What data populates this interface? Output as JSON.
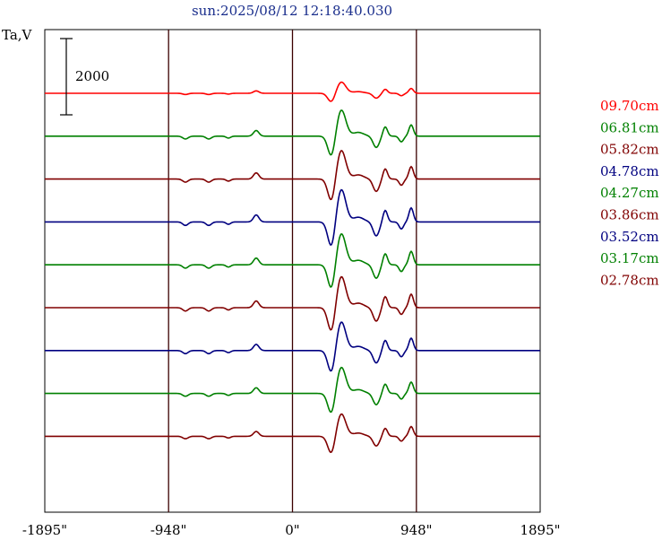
{
  "chart_data": {
    "type": "line",
    "title": "sun:2025/08/12 12:18:40.030",
    "ylabel": "Ta,V",
    "xlabel": "",
    "xlim": [
      -1895,
      1895
    ],
    "x_ticks": [
      {
        "value": -1895,
        "label": "-1895\""
      },
      {
        "value": -948,
        "label": "-948\""
      },
      {
        "value": 0,
        "label": "0\""
      },
      {
        "value": 948,
        "label": "948\""
      },
      {
        "value": 1895,
        "label": "1895\""
      }
    ],
    "vertical_lines": [
      -948,
      0,
      948
    ],
    "scale_bar": {
      "value": 2000,
      "label": "2000"
    },
    "series": [
      {
        "name": "09.70cm",
        "color": "#ff0000",
        "amp": 0.45
      },
      {
        "name": "06.81cm",
        "color": "#008000",
        "amp": 1.05
      },
      {
        "name": "05.82cm",
        "color": "#800000",
        "amp": 1.15
      },
      {
        "name": "04.78cm",
        "color": "#000080",
        "amp": 1.3
      },
      {
        "name": "04.27cm",
        "color": "#008000",
        "amp": 1.25
      },
      {
        "name": "03.86cm",
        "color": "#800000",
        "amp": 1.25
      },
      {
        "name": "03.52cm",
        "color": "#000080",
        "amp": 1.15
      },
      {
        "name": "03.17cm",
        "color": "#008000",
        "amp": 1.05
      },
      {
        "name": "02.78cm",
        "color": "#800000",
        "amp": 0.9
      }
    ]
  }
}
